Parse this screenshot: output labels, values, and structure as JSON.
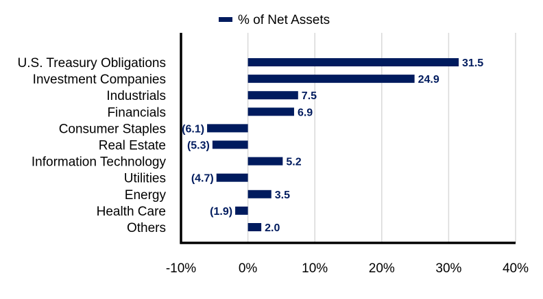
{
  "chart_data": {
    "type": "bar",
    "orientation": "horizontal",
    "legend": {
      "position": "top-center",
      "label": "% of Net Assets"
    },
    "categories": [
      "U.S. Treasury Obligations",
      "Investment Companies",
      "Industrials",
      "Financials",
      "Consumer Staples",
      "Real Estate",
      "Information Technology",
      "Utilities",
      "Energy",
      "Health Care",
      "Others"
    ],
    "series": [
      {
        "name": "% of Net Assets",
        "values": [
          31.5,
          24.9,
          7.5,
          6.9,
          -6.1,
          -5.3,
          5.2,
          -4.7,
          3.5,
          -1.9,
          2.0
        ],
        "data_labels": [
          "31.5",
          "24.9",
          "7.5",
          "6.9",
          "(6.1)",
          "(5.3)",
          "5.2",
          "(4.7)",
          "3.5",
          "(1.9)",
          "2.0"
        ]
      }
    ],
    "xlim": [
      -10,
      40
    ],
    "x_ticks": [
      -10,
      0,
      10,
      20,
      30,
      40
    ],
    "x_tick_labels": [
      "-10%",
      "0%",
      "10%",
      "20%",
      "30%",
      "40%"
    ],
    "grid": {
      "vertical": true,
      "horizontal": false
    },
    "colors": {
      "bar": "#001b5e",
      "grid": "#d9d9d9",
      "axis": "#000000",
      "text": "#000000",
      "data_label": "#001b5e"
    }
  }
}
